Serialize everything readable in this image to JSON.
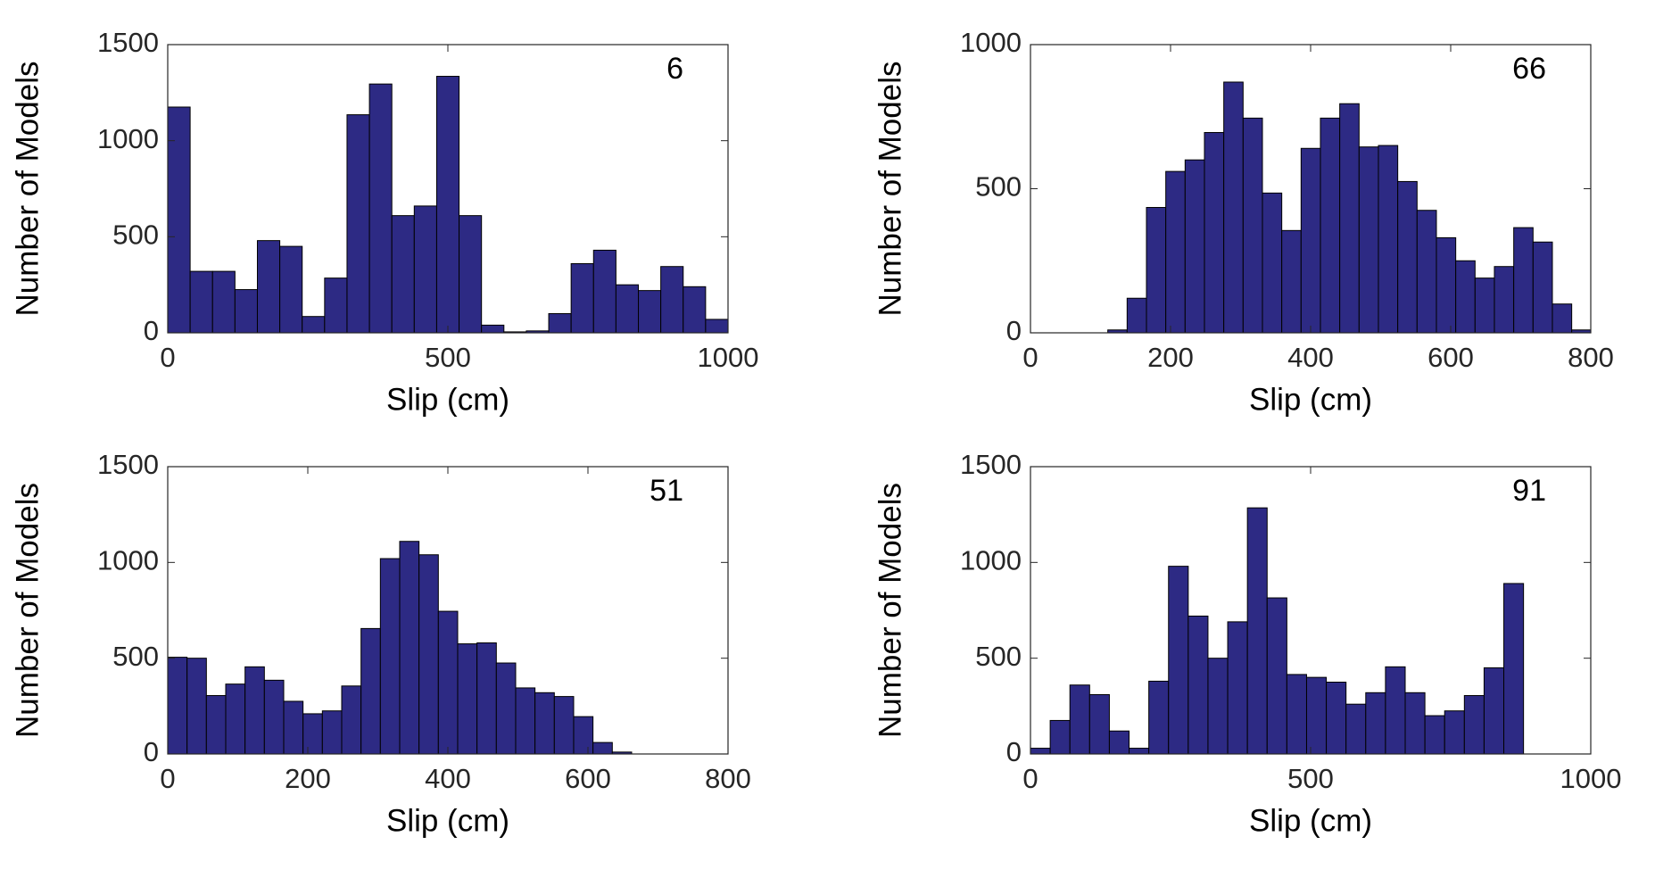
{
  "chart_data": [
    {
      "type": "histogram",
      "annotation": "6",
      "xlabel": "Slip (cm)",
      "ylabel": "Number of Models",
      "color": "#2d2a84",
      "bins": [
        0,
        40,
        80,
        120,
        160,
        200,
        240,
        280,
        320,
        360,
        400,
        440,
        480,
        520,
        560,
        600,
        640,
        680,
        720,
        760,
        800,
        840,
        880,
        920,
        960,
        1000
      ],
      "values": [
        1175,
        320,
        320,
        225,
        480,
        450,
        85,
        285,
        1135,
        1295,
        610,
        660,
        1335,
        610,
        40,
        5,
        10,
        100,
        360,
        430,
        250,
        220,
        345,
        240,
        70
      ],
      "xlim": [
        0,
        1000
      ],
      "xticks": [
        0,
        500,
        1000
      ],
      "ylim": [
        0,
        1500
      ],
      "yticks": [
        0,
        500,
        1000,
        1500
      ]
    },
    {
      "type": "histogram",
      "annotation": "66",
      "xlabel": "Slip (cm)",
      "ylabel": "Number of Models",
      "color": "#2d2a84",
      "bins": [
        0,
        27.6,
        55.2,
        82.8,
        110.4,
        138,
        165.6,
        193.2,
        220.8,
        248.4,
        276,
        303.6,
        331.2,
        358.8,
        386.4,
        414,
        441.6,
        469.2,
        496.8,
        524.4,
        552,
        579.6,
        607.2,
        634.8,
        662.4,
        690,
        717.6,
        745.2,
        772.8,
        800.4
      ],
      "values": [
        0,
        0,
        0,
        0,
        10,
        120,
        435,
        560,
        600,
        695,
        870,
        745,
        485,
        355,
        640,
        745,
        795,
        645,
        650,
        525,
        425,
        330,
        250,
        190,
        230,
        365,
        315,
        100,
        10
      ],
      "xlim": [
        0,
        800
      ],
      "xticks": [
        0,
        200,
        400,
        600,
        800
      ],
      "ylim": [
        0,
        1000
      ],
      "yticks": [
        0,
        500,
        1000
      ]
    },
    {
      "type": "histogram",
      "annotation": "51",
      "xlabel": "Slip (cm)",
      "ylabel": "Number of Models",
      "color": "#2d2a84",
      "bins": [
        0,
        27.6,
        55.2,
        82.8,
        110.4,
        138,
        165.6,
        193.2,
        220.8,
        248.4,
        276,
        303.6,
        331.2,
        358.8,
        386.4,
        414,
        441.6,
        469.2,
        496.8,
        524.4,
        552,
        579.6,
        607.2,
        634.8,
        662.4
      ],
      "values": [
        505,
        500,
        305,
        365,
        455,
        385,
        275,
        210,
        225,
        355,
        655,
        1020,
        1110,
        1040,
        745,
        575,
        580,
        475,
        345,
        320,
        300,
        195,
        60,
        10
      ],
      "xlim": [
        0,
        800
      ],
      "xticks": [
        0,
        200,
        400,
        600,
        800
      ],
      "ylim": [
        0,
        1500
      ],
      "yticks": [
        0,
        500,
        1000,
        1500
      ]
    },
    {
      "type": "histogram",
      "annotation": "91",
      "xlabel": "Slip (cm)",
      "ylabel": "Number of Models",
      "color": "#2d2a84",
      "bins": [
        0,
        35.2,
        70.4,
        105.6,
        140.8,
        176,
        211.2,
        246.4,
        281.6,
        316.8,
        352,
        387.2,
        422.4,
        457.6,
        492.8,
        528,
        563.2,
        598.4,
        633.6,
        668.8,
        704,
        739.2,
        774.4,
        809.6,
        844.8,
        880
      ],
      "values": [
        30,
        175,
        360,
        310,
        120,
        30,
        380,
        980,
        720,
        500,
        690,
        1285,
        815,
        415,
        400,
        375,
        260,
        320,
        455,
        320,
        200,
        225,
        305,
        450,
        890
      ],
      "xlim": [
        0,
        1000
      ],
      "xticks": [
        0,
        500,
        1000
      ],
      "ylim": [
        0,
        1500
      ],
      "yticks": [
        0,
        500,
        1000,
        1500
      ]
    }
  ]
}
